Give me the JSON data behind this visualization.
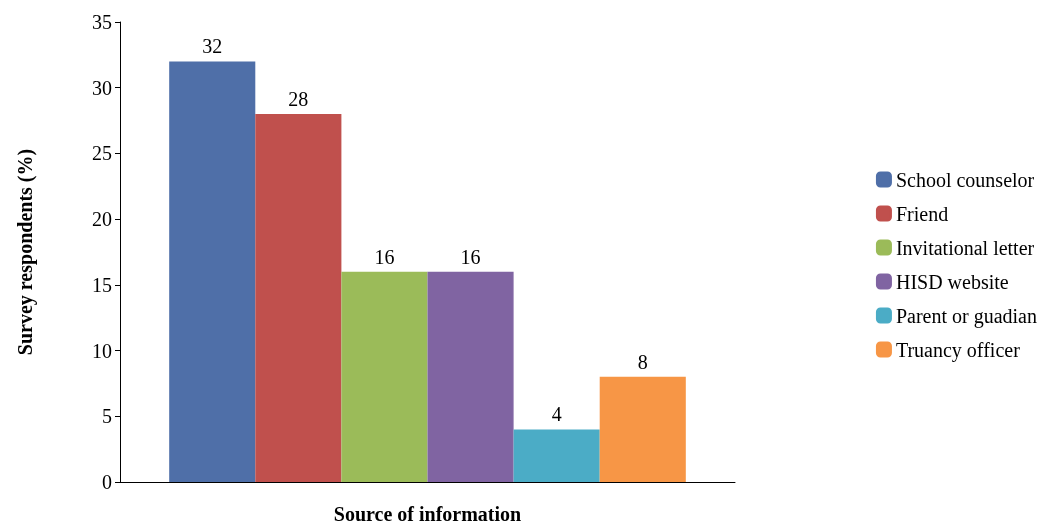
{
  "chart_data": {
    "type": "bar",
    "xlabel": "Source of information",
    "ylabel": "Survey respondents (%)",
    "categories": [
      null
    ],
    "series": [
      {
        "name": "School counselor",
        "color": "#4f6fa8",
        "values": [
          32
        ]
      },
      {
        "name": "Friend",
        "color": "#c0504d",
        "values": [
          28
        ]
      },
      {
        "name": "Invitational letter",
        "color": "#9bbb59",
        "values": [
          16
        ]
      },
      {
        "name": "HISD website",
        "color": "#8064a2",
        "values": [
          16
        ]
      },
      {
        "name": "Parent or guadian",
        "color": "#4bacc6",
        "values": [
          4
        ]
      },
      {
        "name": "Truancy officer",
        "color": "#f79646",
        "values": [
          8
        ]
      }
    ],
    "ylim": [
      0,
      35
    ],
    "yticks": [
      0,
      5,
      10,
      15,
      20,
      25,
      30,
      35
    ],
    "grid": false,
    "legend": "right",
    "data_labels": true
  }
}
